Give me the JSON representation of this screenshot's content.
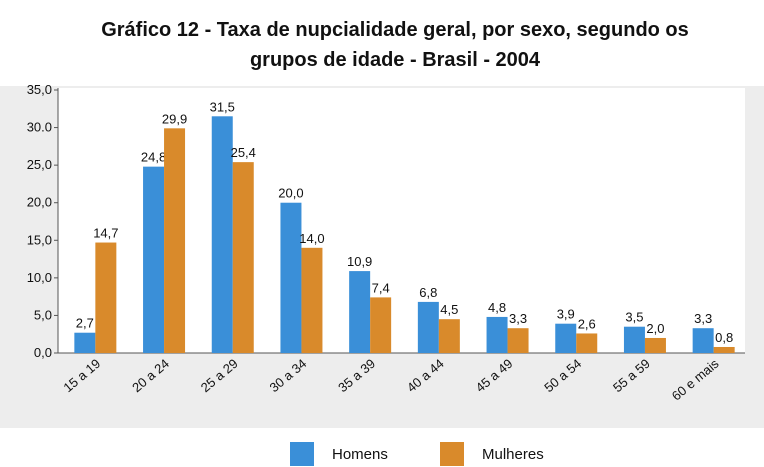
{
  "chart_data": {
    "type": "bar",
    "title": "Gráfico 12 - Taxa de nupcialidade geral, por sexo, segundo os",
    "subtitle": "grupos de idade - Brasil - 2004",
    "categories": [
      "15 a 19",
      "20 a 24",
      "25 a 29",
      "30 a 34",
      "35 a 39",
      "40 a 44",
      "45 a 49",
      "50 a 54",
      "55 a 59",
      "60 e mais"
    ],
    "series": [
      {
        "name": "Homens",
        "color": "#3a8fd8",
        "values": [
          2.7,
          24.8,
          31.5,
          20.0,
          10.9,
          6.8,
          4.8,
          3.9,
          3.5,
          3.3
        ],
        "value_labels": [
          "2,7",
          "24,8",
          "31,5",
          "20,0",
          "10,9",
          "6,8",
          "4,8",
          "3,9",
          "3,5",
          "3,3"
        ]
      },
      {
        "name": "Mulheres",
        "color": "#d98a2b",
        "values": [
          14.7,
          29.9,
          25.4,
          14.0,
          7.4,
          4.5,
          3.3,
          2.6,
          2.0,
          0.8
        ],
        "value_labels": [
          "14,7",
          "29,9",
          "25,4",
          "14,0",
          "7,4",
          "4,5",
          "3,3",
          "2,6",
          "2,0",
          "0,8"
        ]
      }
    ],
    "ylim": [
      0,
      35
    ],
    "yticks": [
      {
        "value": 0,
        "label": "0,0"
      },
      {
        "value": 5,
        "label": "5,0"
      },
      {
        "value": 10,
        "label": "10,0"
      },
      {
        "value": 15,
        "label": "15,0"
      },
      {
        "value": 20,
        "label": "20,0"
      },
      {
        "value": 25,
        "label": "25,0"
      },
      {
        "value": 30,
        "label": "30.0"
      },
      {
        "value": 35,
        "label": "35,0"
      }
    ],
    "legend": "bottom"
  }
}
